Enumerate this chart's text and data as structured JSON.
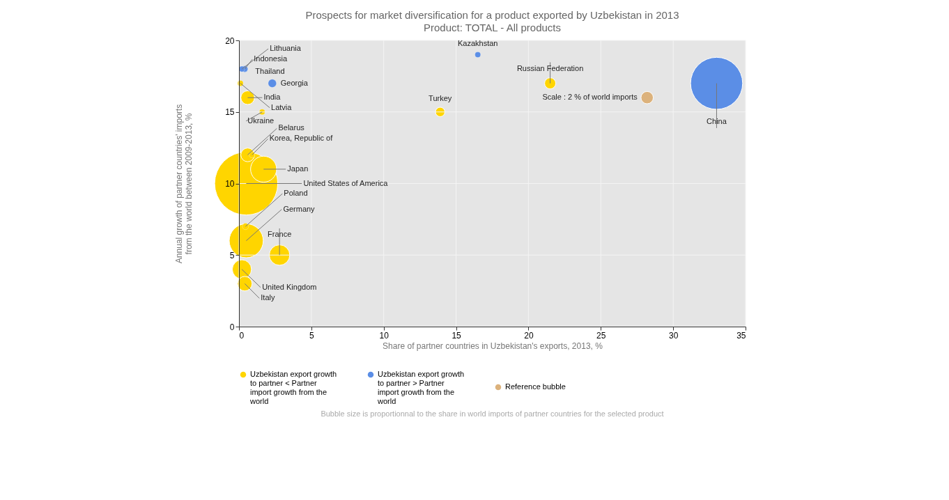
{
  "chart_data": {
    "type": "bubble",
    "title": "Prospects for market diversification for a product exported by Uzbekistan in 2013",
    "subtitle": "Product: TOTAL - All products",
    "xlabel": "Share of partner countries in Uzbekistan's exports, 2013, %",
    "ylabel": "Annual growth of partner countries' imports from the world between 2009-2013, %",
    "xlim": [
      0,
      35
    ],
    "xticks": [
      0,
      5,
      10,
      15,
      20,
      25,
      30,
      35
    ],
    "ylim": [
      0,
      20
    ],
    "yticks": [
      0,
      5,
      10,
      15,
      20
    ],
    "grid": true,
    "legend": "bottom",
    "series": [
      {
        "name": "Uzbekistan export growth to partner < Partner import growth from the world",
        "color": "#ffd500",
        "x": [
          0.5,
          0.5,
          1.7,
          0.6,
          2.8,
          0.2,
          0.4,
          0.6,
          21.5,
          0.45,
          13.9,
          0.9,
          0.1,
          1.6
        ],
        "values": [
          10,
          6,
          11,
          12,
          5,
          4,
          3,
          16,
          17,
          7,
          15,
          12,
          17,
          15
        ],
        "sizes": [
          1,
          0.29,
          0.17,
          0.047,
          0.105,
          0.092,
          0.053,
          0.047,
          0.031,
          0.01,
          0.022,
          0.008,
          0.008,
          0.008
        ]
      },
      {
        "name": "Uzbekistan export growth to partner > Partner import growth from the world",
        "color": "#5b8ee6",
        "x": [
          33,
          2.3,
          0.4,
          0.4,
          0.2,
          16.5
        ],
        "values": [
          17,
          17,
          18,
          18,
          18,
          19
        ],
        "sizes": [
          0.68,
          0.017,
          0.01,
          0.008,
          0.008,
          0.008
        ]
      },
      {
        "name": "Reference bubble",
        "color": "#dcb27c",
        "x": [
          28.2
        ],
        "values": [
          16
        ],
        "sizes": [
          0.038
        ]
      }
    ],
    "annotations": [
      {
        "text": "Lithuania",
        "x": 0.2,
        "y": 18
      },
      {
        "text": "Indonesia",
        "x": 0.4,
        "y": 18
      },
      {
        "text": "Thailand",
        "x": 0.4,
        "y": 18
      },
      {
        "text": "Georgia",
        "x": 2.3,
        "y": 17
      },
      {
        "text": "India",
        "x": 0.6,
        "y": 16
      },
      {
        "text": "Latvia",
        "x": 0.1,
        "y": 17
      },
      {
        "text": "Ukraine",
        "x": 1.6,
        "y": 15
      },
      {
        "text": "Belarus",
        "x": 0.6,
        "y": 12
      },
      {
        "text": "Korea, Republic of",
        "x": 0.9,
        "y": 12
      },
      {
        "text": "Japan",
        "x": 1.7,
        "y": 11
      },
      {
        "text": "United States of America",
        "x": 0.5,
        "y": 10
      },
      {
        "text": "Poland",
        "x": 0.45,
        "y": 7
      },
      {
        "text": "Germany",
        "x": 0.5,
        "y": 6
      },
      {
        "text": "France",
        "x": 2.8,
        "y": 5
      },
      {
        "text": "United Kingdom",
        "x": 0.2,
        "y": 4
      },
      {
        "text": "Italy",
        "x": 0.4,
        "y": 3
      },
      {
        "text": "Kazakhstan",
        "x": 16.5,
        "y": 19
      },
      {
        "text": "Russian Federation",
        "x": 21.5,
        "y": 17
      },
      {
        "text": "Turkey",
        "x": 13.9,
        "y": 15
      },
      {
        "text": "Scale : 2 % of world imports",
        "x": 28.2,
        "y": 16
      },
      {
        "text": "China",
        "x": 33,
        "y": 17
      },
      "Bubble size is proportionnal to the share in world imports of partner countries for the selected product"
    ]
  }
}
